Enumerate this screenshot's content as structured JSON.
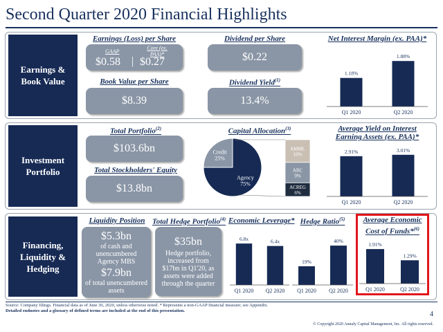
{
  "page": {
    "title": "Second Quarter 2020 Financial Highlights",
    "page_number": "4",
    "footnote_1": "Source: Company filings. Financial data as of June 30, 2020, unless otherwise noted. * Represents a non-GAAP financial measure; see Appendix.",
    "footnote_2": "Detailed endnotes and a glossary of defined terms are included at the end of this presentation.",
    "copyright": "© Copyright 2020 Annaly Capital Management, Inc.  All rights reserved."
  },
  "earnings": {
    "side_label": "Earnings & Book Value",
    "eps_header": "Earnings (Loss) per Share",
    "eps_gaap_label": "GAAP",
    "eps_core_label": "Core (ex. PAA)*",
    "eps_gaap": "$0.58",
    "eps_sep": "|",
    "eps_core": "$0.27",
    "dividend_header": "Dividend per Share",
    "dividend_value": "$0.22",
    "bvps_header": "Book Value per Share",
    "bvps_value": "$8.39",
    "yield_header": "Dividend Yield",
    "yield_sup": "(1)",
    "yield_value": "13.4%",
    "nim_header": "Net Interest Margin (ex. PAA)*"
  },
  "investment": {
    "side_label": "Investment Portfolio",
    "portfolio_header": "Total Portfolio",
    "portfolio_sup": "(2)",
    "portfolio_value": "$103.6bn",
    "equity_header": "Total Stockholders' Equity",
    "equity_value": "$13.8bn",
    "allocation_header": "Capital Allocation",
    "allocation_sup": "(3)",
    "yield_header_1": "Average Yield on Interest",
    "yield_header_2": "Earning Assets (ex. PAA)*"
  },
  "financing": {
    "side_label": "Financing, Liquidity & Hedging",
    "liquidity_header": "Liquidity Position",
    "liquidity_value": "$5.3bn",
    "liquidity_desc": "of cash and unencumbered Agency MBS",
    "unencumbered_value": "$7.9bn",
    "unencumbered_desc": "of total unencumbered assets",
    "hedge_header": "Total Hedge Portfolio",
    "hedge_sup": "(4)",
    "hedge_value": "$35bn",
    "hedge_desc": "Hedge portfolio, increased from $17bn in Q1'20, as assets were added through the quarter",
    "leverage_header": "Economic Leverage*",
    "hedge_ratio_header": "Hedge Ratio",
    "hedge_ratio_sup": "(5)",
    "cof_header_1": "Average Economic",
    "cof_header_2": "Cost of Funds*",
    "cof_sup": "(6)"
  },
  "colors": {
    "navy": "#162a54",
    "pill_gray": "#8a96a6",
    "highlight_red": "#e0161b"
  },
  "chart_data": [
    {
      "id": "nim",
      "type": "bar",
      "categories": [
        "Q1 2020",
        "Q2 2020"
      ],
      "values": [
        1.18,
        1.88
      ],
      "labels": [
        "1.18%",
        "1.88%"
      ],
      "title": "Net Interest Margin (ex. PAA)*"
    },
    {
      "id": "yield",
      "type": "bar",
      "categories": [
        "Q1 2020",
        "Q2 2020"
      ],
      "values": [
        2.91,
        3.01
      ],
      "labels": [
        "2.91%",
        "3.01%"
      ],
      "title": "Average Yield on Interest Earning Assets (ex. PAA)*"
    },
    {
      "id": "leverage",
      "type": "bar",
      "categories": [
        "Q1 2020",
        "Q2 2020"
      ],
      "values": [
        6.8,
        6.4
      ],
      "labels": [
        "6.8x",
        "6.4x"
      ],
      "title": "Economic Leverage*"
    },
    {
      "id": "hedge_ratio",
      "type": "bar",
      "categories": [
        "Q1 2020",
        "Q2 2020"
      ],
      "values": [
        19,
        40
      ],
      "labels": [
        "19%",
        "40%"
      ],
      "title": "Hedge Ratio"
    },
    {
      "id": "cof",
      "type": "bar",
      "categories": [
        "Q1 2020",
        "Q2 2020"
      ],
      "values": [
        1.91,
        1.29
      ],
      "labels": [
        "1.91%",
        "1.29%"
      ],
      "title": "Average Economic Cost of Funds*"
    },
    {
      "id": "allocation",
      "type": "pie",
      "slices": [
        {
          "label": "Agency",
          "value": 75,
          "text": "75%",
          "color": "#162a54"
        },
        {
          "label": "Credit",
          "value": 25,
          "text": "25%",
          "color": "#8a96a6"
        }
      ],
      "breakout": [
        {
          "label": "AMML",
          "text": "10%",
          "value": 10,
          "color": "#c9bfb3"
        },
        {
          "label": "ARC",
          "text": "9%",
          "value": 9,
          "color": "#8a96a6"
        },
        {
          "label": "ACREG",
          "text": "6%",
          "value": 6,
          "color": "#1f2d3f"
        }
      ],
      "title": "Capital Allocation"
    }
  ]
}
